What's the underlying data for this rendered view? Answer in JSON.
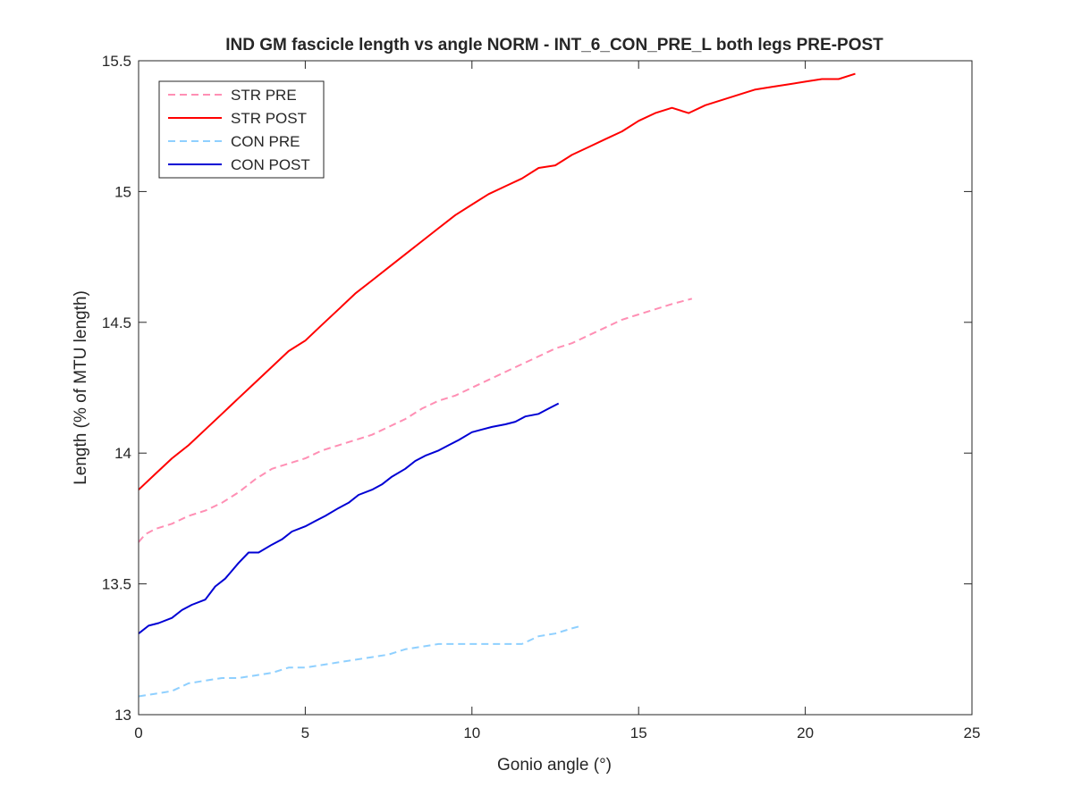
{
  "chart_data": {
    "type": "line",
    "title": "IND GM fascicle length vs angle NORM - INT_6_CON_PRE_L both legs PRE-POST",
    "xlabel": "Gonio angle (°)",
    "ylabel": "Length (% of MTU length)",
    "xlim": [
      0,
      25
    ],
    "ylim": [
      13,
      15.5
    ],
    "xticks": [
      0,
      5,
      10,
      15,
      20,
      25
    ],
    "yticks": [
      13,
      13.5,
      14,
      14.5,
      15,
      15.5
    ],
    "xtick_labels": [
      "0",
      "5",
      "10",
      "15",
      "20",
      "25"
    ],
    "ytick_labels": [
      "13",
      "13.5",
      "14",
      "14.5",
      "15",
      "15.5"
    ],
    "grid": false,
    "legend_position": "top-left",
    "series": [
      {
        "name": "STR PRE",
        "color": "#ff8fb4",
        "dash": "dashed",
        "x": [
          0,
          0.2,
          0.5,
          1.0,
          1.5,
          2.0,
          2.5,
          3.0,
          3.5,
          4.0,
          4.5,
          5.0,
          5.5,
          6.0,
          6.5,
          7.0,
          7.5,
          8.0,
          8.5,
          9.0,
          9.5,
          10.0,
          10.5,
          11.0,
          11.5,
          12.0,
          12.5,
          13.0,
          13.5,
          14.0,
          14.5,
          15.0,
          15.5,
          16.0,
          16.6
        ],
        "y": [
          13.66,
          13.69,
          13.71,
          13.73,
          13.76,
          13.78,
          13.81,
          13.85,
          13.9,
          13.94,
          13.96,
          13.98,
          14.01,
          14.03,
          14.05,
          14.07,
          14.1,
          14.13,
          14.17,
          14.2,
          14.22,
          14.25,
          14.28,
          14.31,
          14.34,
          14.37,
          14.4,
          14.42,
          14.45,
          14.48,
          14.51,
          14.53,
          14.55,
          14.57,
          14.59
        ]
      },
      {
        "name": "STR POST",
        "color": "#ff0000",
        "dash": "solid",
        "x": [
          0,
          0.5,
          1.0,
          1.5,
          2.0,
          2.5,
          3.0,
          3.5,
          4.0,
          4.5,
          5.0,
          5.5,
          6.0,
          6.5,
          7.0,
          7.5,
          8.0,
          8.5,
          9.0,
          9.5,
          10.0,
          10.5,
          11.0,
          11.5,
          12.0,
          12.5,
          13.0,
          13.5,
          14.0,
          14.5,
          15.0,
          15.5,
          16.0,
          16.5,
          17.0,
          17.5,
          18.0,
          18.5,
          19.0,
          19.5,
          20.0,
          20.5,
          21.0,
          21.5
        ],
        "y": [
          13.86,
          13.92,
          13.98,
          14.03,
          14.09,
          14.15,
          14.21,
          14.27,
          14.33,
          14.39,
          14.43,
          14.49,
          14.55,
          14.61,
          14.66,
          14.71,
          14.76,
          14.81,
          14.86,
          14.91,
          14.95,
          14.99,
          15.02,
          15.05,
          15.09,
          15.1,
          15.14,
          15.17,
          15.2,
          15.23,
          15.27,
          15.3,
          15.32,
          15.3,
          15.33,
          15.35,
          15.37,
          15.39,
          15.4,
          15.41,
          15.42,
          15.43,
          15.43,
          15.45
        ]
      },
      {
        "name": "CON PRE",
        "color": "#8fd0ff",
        "dash": "dashed",
        "x": [
          0,
          0.5,
          1.0,
          1.5,
          2.0,
          2.5,
          3.0,
          3.5,
          4.0,
          4.5,
          5.0,
          5.5,
          6.0,
          6.5,
          7.0,
          7.5,
          8.0,
          8.5,
          9.0,
          9.5,
          10.0,
          10.5,
          11.0,
          11.5,
          12.0,
          12.5,
          13.0,
          13.3
        ],
        "y": [
          13.07,
          13.08,
          13.09,
          13.12,
          13.13,
          13.14,
          13.14,
          13.15,
          13.16,
          13.18,
          13.18,
          13.19,
          13.2,
          13.21,
          13.22,
          13.23,
          13.25,
          13.26,
          13.27,
          13.27,
          13.27,
          13.27,
          13.27,
          13.27,
          13.3,
          13.31,
          13.33,
          13.34
        ]
      },
      {
        "name": "CON POST",
        "color": "#0000d4",
        "dash": "solid",
        "x": [
          0,
          0.3,
          0.6,
          1.0,
          1.3,
          1.6,
          2.0,
          2.3,
          2.6,
          3.0,
          3.3,
          3.6,
          4.0,
          4.3,
          4.6,
          5.0,
          5.3,
          5.6,
          6.0,
          6.3,
          6.6,
          7.0,
          7.3,
          7.6,
          8.0,
          8.3,
          8.6,
          9.0,
          9.3,
          9.6,
          10.0,
          10.3,
          10.6,
          11.0,
          11.3,
          11.6,
          12.0,
          12.3,
          12.6
        ],
        "y": [
          13.31,
          13.34,
          13.35,
          13.37,
          13.4,
          13.42,
          13.44,
          13.49,
          13.52,
          13.58,
          13.62,
          13.62,
          13.65,
          13.67,
          13.7,
          13.72,
          13.74,
          13.76,
          13.79,
          13.81,
          13.84,
          13.86,
          13.88,
          13.91,
          13.94,
          13.97,
          13.99,
          14.01,
          14.03,
          14.05,
          14.08,
          14.09,
          14.1,
          14.11,
          14.12,
          14.14,
          14.15,
          14.17,
          14.19
        ]
      }
    ]
  }
}
